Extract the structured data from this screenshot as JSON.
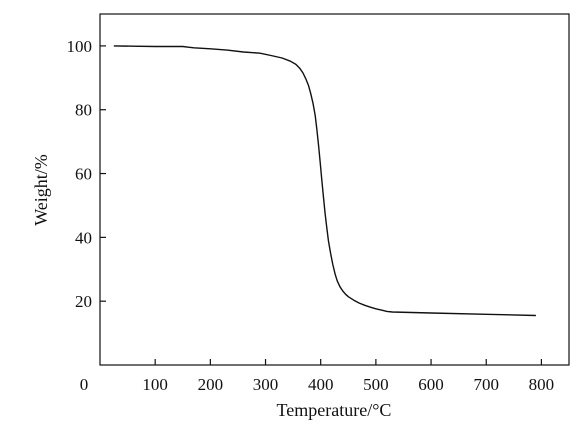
{
  "chart_data": {
    "type": "line",
    "title": "",
    "xlabel": "Temperature/°C",
    "ylabel": "Weight/%",
    "xlim": [
      0,
      850
    ],
    "ylim": [
      0,
      110
    ],
    "x_ticks": [
      0,
      100,
      200,
      300,
      400,
      500,
      600,
      700,
      800
    ],
    "y_ticks": [
      20,
      40,
      60,
      80,
      100
    ],
    "grid": false,
    "legend": "none",
    "line_color": "#111111",
    "series": [
      {
        "x": [
          25,
          60,
          100,
          150,
          160,
          170,
          200,
          230,
          260,
          290,
          310,
          330,
          345,
          355,
          362,
          368,
          373,
          378,
          382,
          386,
          390,
          393,
          396,
          399,
          402,
          405,
          408,
          411,
          414,
          418,
          422,
          426,
          430,
          435,
          440,
          445,
          450,
          460,
          470,
          480,
          490,
          500,
          510,
          520,
          530,
          600,
          700,
          790
        ],
        "y": [
          100,
          99.9,
          99.8,
          99.8,
          99.6,
          99.4,
          99.1,
          98.7,
          98.1,
          97.7,
          97.0,
          96.2,
          95.2,
          94.2,
          93.0,
          91.5,
          89.7,
          87.5,
          85.0,
          82.0,
          78.2,
          74.0,
          69.0,
          63.5,
          58.0,
          52.5,
          47.5,
          43.0,
          39.0,
          35.0,
          31.5,
          28.5,
          26.3,
          24.5,
          23.2,
          22.2,
          21.4,
          20.3,
          19.4,
          18.7,
          18.1,
          17.6,
          17.2,
          16.8,
          16.6,
          16.3,
          15.9,
          15.5
        ]
      }
    ]
  }
}
